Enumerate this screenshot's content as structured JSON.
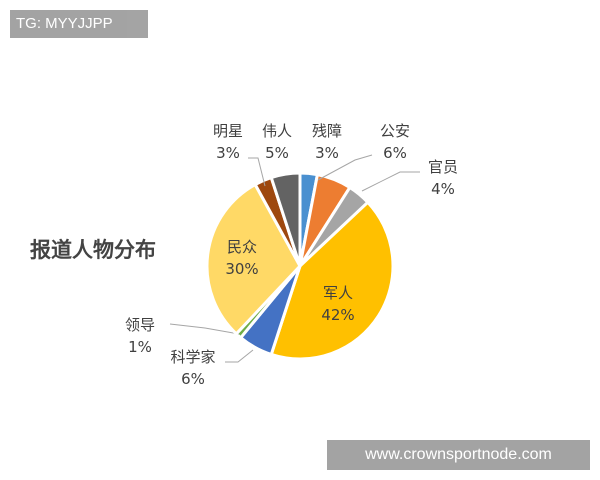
{
  "watermark_top": "TG: MYYJJPP",
  "watermark_bottom": "www.crownsportnode.com",
  "chart_data": {
    "type": "pie",
    "title": "报道人物分布",
    "start": "top",
    "direction": "clockwise",
    "slices": [
      {
        "label": "残障",
        "value": 3,
        "pct": "3%",
        "color": "#4a90d0"
      },
      {
        "label": "公安",
        "value": 6,
        "pct": "6%",
        "color": "#ed7d31"
      },
      {
        "label": "官员",
        "value": 4,
        "pct": "4%",
        "color": "#a5a5a5"
      },
      {
        "label": "军人",
        "value": 42,
        "pct": "42%",
        "color": "#ffc000"
      },
      {
        "label": "科学家",
        "value": 6,
        "pct": "6%",
        "color": "#4472c4"
      },
      {
        "label": "领导",
        "value": 1,
        "pct": "1%",
        "color": "#70ad47"
      },
      {
        "label": "民众",
        "value": 30,
        "pct": "30%",
        "color": "#ffd966"
      },
      {
        "label": "明星",
        "value": 3,
        "pct": "3%",
        "color": "#9e480e"
      },
      {
        "label": "伟人",
        "value": 5,
        "pct": "5%",
        "color": "#636363"
      }
    ]
  }
}
